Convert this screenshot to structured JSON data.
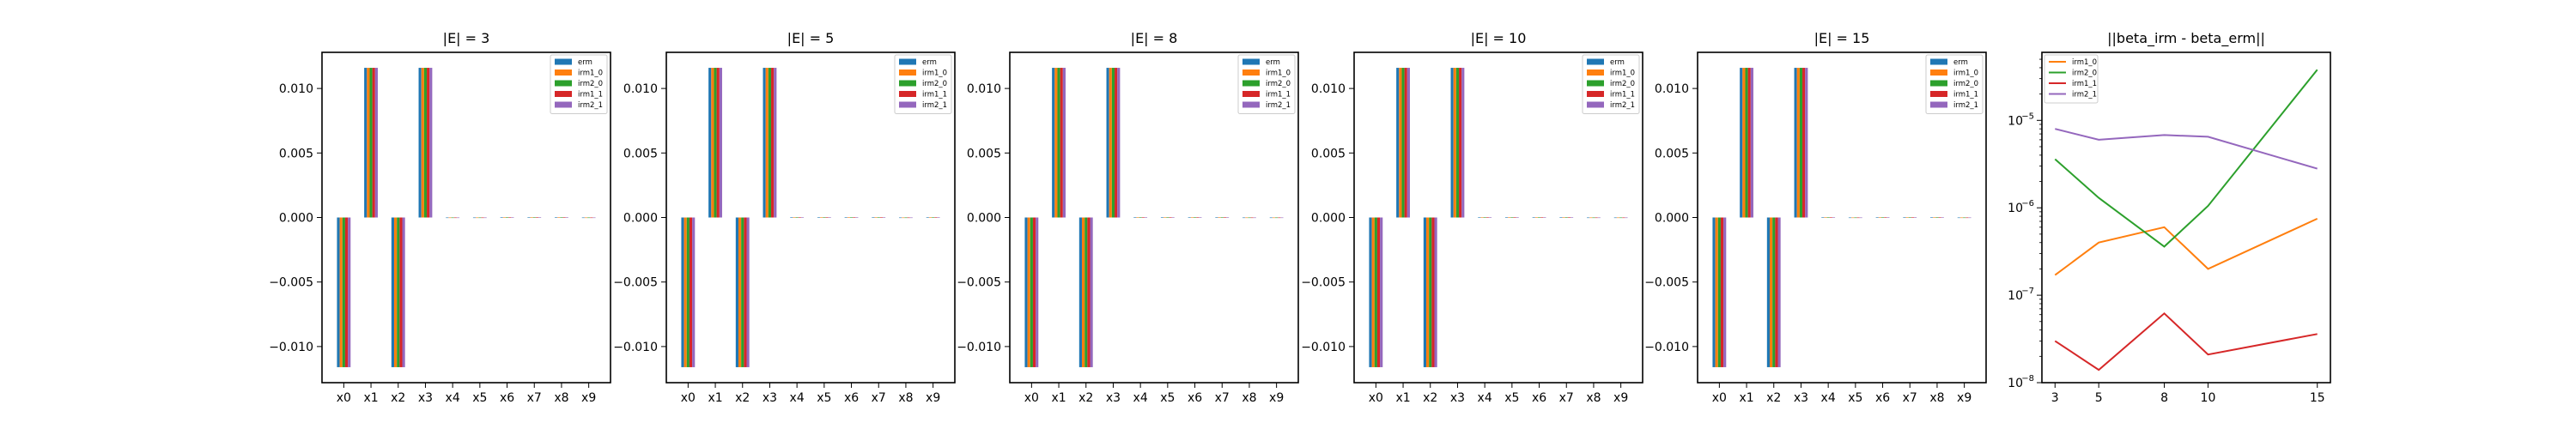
{
  "colors": {
    "erm": "#1f77b4",
    "irm1_0": "#ff7f0e",
    "irm2_0": "#2ca02c",
    "irm1_1": "#d62728",
    "irm2_1": "#9467bd"
  },
  "chart_data": [
    {
      "type": "bar",
      "title": "|E| = 3",
      "categories": [
        "x0",
        "x1",
        "x2",
        "x3",
        "x4",
        "x5",
        "x6",
        "x7",
        "x8",
        "x9"
      ],
      "ylim": [
        -0.0128,
        0.0128
      ],
      "yticks": [
        -0.01,
        -0.005,
        0.0,
        0.005,
        0.01
      ],
      "ytick_labels": [
        "−0.010",
        "−0.005",
        "0.000",
        "0.005",
        "0.010"
      ],
      "legend": "top-right",
      "series": [
        {
          "name": "erm",
          "values": [
            -0.0116,
            0.0116,
            -0.0116,
            0.0116,
            0,
            0,
            2e-05,
            2e-05,
            2e-05,
            0
          ]
        },
        {
          "name": "irm1_0",
          "values": [
            -0.0116,
            0.0116,
            -0.0116,
            0.0116,
            0,
            0,
            2e-05,
            2e-05,
            2e-05,
            0
          ]
        },
        {
          "name": "irm2_0",
          "values": [
            -0.0116,
            0.0116,
            -0.0116,
            0.0116,
            0,
            0,
            2e-05,
            2e-05,
            2e-05,
            0
          ]
        },
        {
          "name": "irm1_1",
          "values": [
            -0.0116,
            0.0116,
            -0.0116,
            0.0116,
            0,
            0,
            2e-05,
            2e-05,
            2e-05,
            0
          ]
        },
        {
          "name": "irm2_1",
          "values": [
            -0.0116,
            0.0116,
            -0.0116,
            0.0116,
            0,
            0,
            2e-05,
            2e-05,
            2e-05,
            0
          ]
        }
      ]
    },
    {
      "type": "bar",
      "title": "|E| = 5",
      "categories": [
        "x0",
        "x1",
        "x2",
        "x3",
        "x4",
        "x5",
        "x6",
        "x7",
        "x8",
        "x9"
      ],
      "ylim": [
        -0.0128,
        0.0128
      ],
      "yticks": [
        -0.01,
        -0.005,
        0.0,
        0.005,
        0.01
      ],
      "ytick_labels": [
        "−0.010",
        "−0.005",
        "0.000",
        "0.005",
        "0.010"
      ],
      "legend": "top-right",
      "series": [
        {
          "name": "erm",
          "values": [
            -0.0116,
            0.0116,
            -0.0116,
            0.0116,
            2e-05,
            2e-05,
            2e-05,
            2e-05,
            0,
            2e-05
          ]
        },
        {
          "name": "irm1_0",
          "values": [
            -0.0116,
            0.0116,
            -0.0116,
            0.0116,
            2e-05,
            2e-05,
            2e-05,
            2e-05,
            0,
            2e-05
          ]
        },
        {
          "name": "irm2_0",
          "values": [
            -0.0116,
            0.0116,
            -0.0116,
            0.0116,
            2e-05,
            2e-05,
            2e-05,
            2e-05,
            0,
            2e-05
          ]
        },
        {
          "name": "irm1_1",
          "values": [
            -0.0116,
            0.0116,
            -0.0116,
            0.0116,
            2e-05,
            2e-05,
            2e-05,
            2e-05,
            0,
            2e-05
          ]
        },
        {
          "name": "irm2_1",
          "values": [
            -0.0116,
            0.0116,
            -0.0116,
            0.0116,
            2e-05,
            2e-05,
            2e-05,
            2e-05,
            0,
            2e-05
          ]
        }
      ]
    },
    {
      "type": "bar",
      "title": "|E| = 8",
      "categories": [
        "x0",
        "x1",
        "x2",
        "x3",
        "x4",
        "x5",
        "x6",
        "x7",
        "x8",
        "x9"
      ],
      "ylim": [
        -0.0128,
        0.0128
      ],
      "yticks": [
        -0.01,
        -0.005,
        0.0,
        0.005,
        0.01
      ],
      "ytick_labels": [
        "−0.010",
        "−0.005",
        "0.000",
        "0.005",
        "0.010"
      ],
      "legend": "top-right",
      "series": [
        {
          "name": "erm",
          "values": [
            -0.0116,
            0.0116,
            -0.0116,
            0.0116,
            2e-05,
            2e-05,
            2e-05,
            2e-05,
            0,
            0
          ]
        },
        {
          "name": "irm1_0",
          "values": [
            -0.0116,
            0.0116,
            -0.0116,
            0.0116,
            2e-05,
            2e-05,
            2e-05,
            2e-05,
            0,
            0
          ]
        },
        {
          "name": "irm2_0",
          "values": [
            -0.0116,
            0.0116,
            -0.0116,
            0.0116,
            2e-05,
            2e-05,
            2e-05,
            2e-05,
            0,
            0
          ]
        },
        {
          "name": "irm1_1",
          "values": [
            -0.0116,
            0.0116,
            -0.0116,
            0.0116,
            2e-05,
            2e-05,
            2e-05,
            2e-05,
            0,
            0
          ]
        },
        {
          "name": "irm2_1",
          "values": [
            -0.0116,
            0.0116,
            -0.0116,
            0.0116,
            2e-05,
            2e-05,
            2e-05,
            2e-05,
            0,
            0
          ]
        }
      ]
    },
    {
      "type": "bar",
      "title": "|E| = 10",
      "categories": [
        "x0",
        "x1",
        "x2",
        "x3",
        "x4",
        "x5",
        "x6",
        "x7",
        "x8",
        "x9"
      ],
      "ylim": [
        -0.0128,
        0.0128
      ],
      "yticks": [
        -0.01,
        -0.005,
        0.0,
        0.005,
        0.01
      ],
      "ytick_labels": [
        "−0.010",
        "−0.005",
        "0.000",
        "0.005",
        "0.010"
      ],
      "legend": "top-right",
      "series": [
        {
          "name": "erm",
          "values": [
            -0.0116,
            0.0116,
            -0.0116,
            0.0116,
            2e-05,
            2e-05,
            2e-05,
            2e-05,
            0,
            0
          ]
        },
        {
          "name": "irm1_0",
          "values": [
            -0.0116,
            0.0116,
            -0.0116,
            0.0116,
            2e-05,
            2e-05,
            2e-05,
            2e-05,
            0,
            0
          ]
        },
        {
          "name": "irm2_0",
          "values": [
            -0.0116,
            0.0116,
            -0.0116,
            0.0116,
            2e-05,
            2e-05,
            2e-05,
            2e-05,
            0,
            0
          ]
        },
        {
          "name": "irm1_1",
          "values": [
            -0.0116,
            0.0116,
            -0.0116,
            0.0116,
            2e-05,
            2e-05,
            2e-05,
            2e-05,
            0,
            0
          ]
        },
        {
          "name": "irm2_1",
          "values": [
            -0.0116,
            0.0116,
            -0.0116,
            0.0116,
            2e-05,
            2e-05,
            2e-05,
            2e-05,
            0,
            0
          ]
        }
      ]
    },
    {
      "type": "bar",
      "title": "|E| = 15",
      "categories": [
        "x0",
        "x1",
        "x2",
        "x3",
        "x4",
        "x5",
        "x6",
        "x7",
        "x8",
        "x9"
      ],
      "ylim": [
        -0.0128,
        0.0128
      ],
      "yticks": [
        -0.01,
        -0.005,
        0.0,
        0.005,
        0.01
      ],
      "ytick_labels": [
        "−0.010",
        "−0.005",
        "0.000",
        "0.005",
        "0.010"
      ],
      "legend": "top-right",
      "series": [
        {
          "name": "erm",
          "values": [
            -0.0116,
            0.0116,
            -0.0116,
            0.0116,
            2e-05,
            0,
            2e-05,
            2e-05,
            2e-05,
            0
          ]
        },
        {
          "name": "irm1_0",
          "values": [
            -0.0116,
            0.0116,
            -0.0116,
            0.0116,
            2e-05,
            0,
            2e-05,
            2e-05,
            2e-05,
            0
          ]
        },
        {
          "name": "irm2_0",
          "values": [
            -0.0116,
            0.0116,
            -0.0116,
            0.0116,
            2e-05,
            0,
            2e-05,
            2e-05,
            2e-05,
            0
          ]
        },
        {
          "name": "irm1_1",
          "values": [
            -0.0116,
            0.0116,
            -0.0116,
            0.0116,
            2e-05,
            0,
            2e-05,
            2e-05,
            2e-05,
            0
          ]
        },
        {
          "name": "irm2_1",
          "values": [
            -0.0116,
            0.0116,
            -0.0116,
            0.0116,
            2e-05,
            0,
            2e-05,
            2e-05,
            2e-05,
            0
          ]
        }
      ]
    },
    {
      "type": "line",
      "title": "||beta_irm - beta_erm||",
      "x": [
        3,
        5,
        8,
        10,
        15
      ],
      "xlim": [
        2.4,
        15.6
      ],
      "xticks": [
        3,
        5,
        8,
        10,
        15
      ],
      "yscale": "log",
      "ylim": [
        1e-08,
        6e-05
      ],
      "yticks": [
        1e-08,
        1e-07,
        1e-06,
        1e-05
      ],
      "ytick_labels": [
        "10",
        "10",
        "10",
        "10"
      ],
      "ytick_exponents": [
        "−8",
        "−7",
        "−6",
        "−5"
      ],
      "legend": "top-left",
      "series": [
        {
          "name": "irm1_0",
          "values": [
            1.7e-07,
            4e-07,
            6e-07,
            2e-07,
            7.5e-07
          ]
        },
        {
          "name": "irm2_0",
          "values": [
            3.6e-06,
            1.3e-06,
            3.6e-07,
            1.05e-06,
            3.8e-05
          ]
        },
        {
          "name": "irm1_1",
          "values": [
            3e-08,
            1.4e-08,
            6.2e-08,
            2.1e-08,
            3.6e-08
          ]
        },
        {
          "name": "irm2_1",
          "values": [
            8e-06,
            6e-06,
            6.8e-06,
            6.5e-06,
            2.8e-06
          ]
        }
      ]
    }
  ]
}
